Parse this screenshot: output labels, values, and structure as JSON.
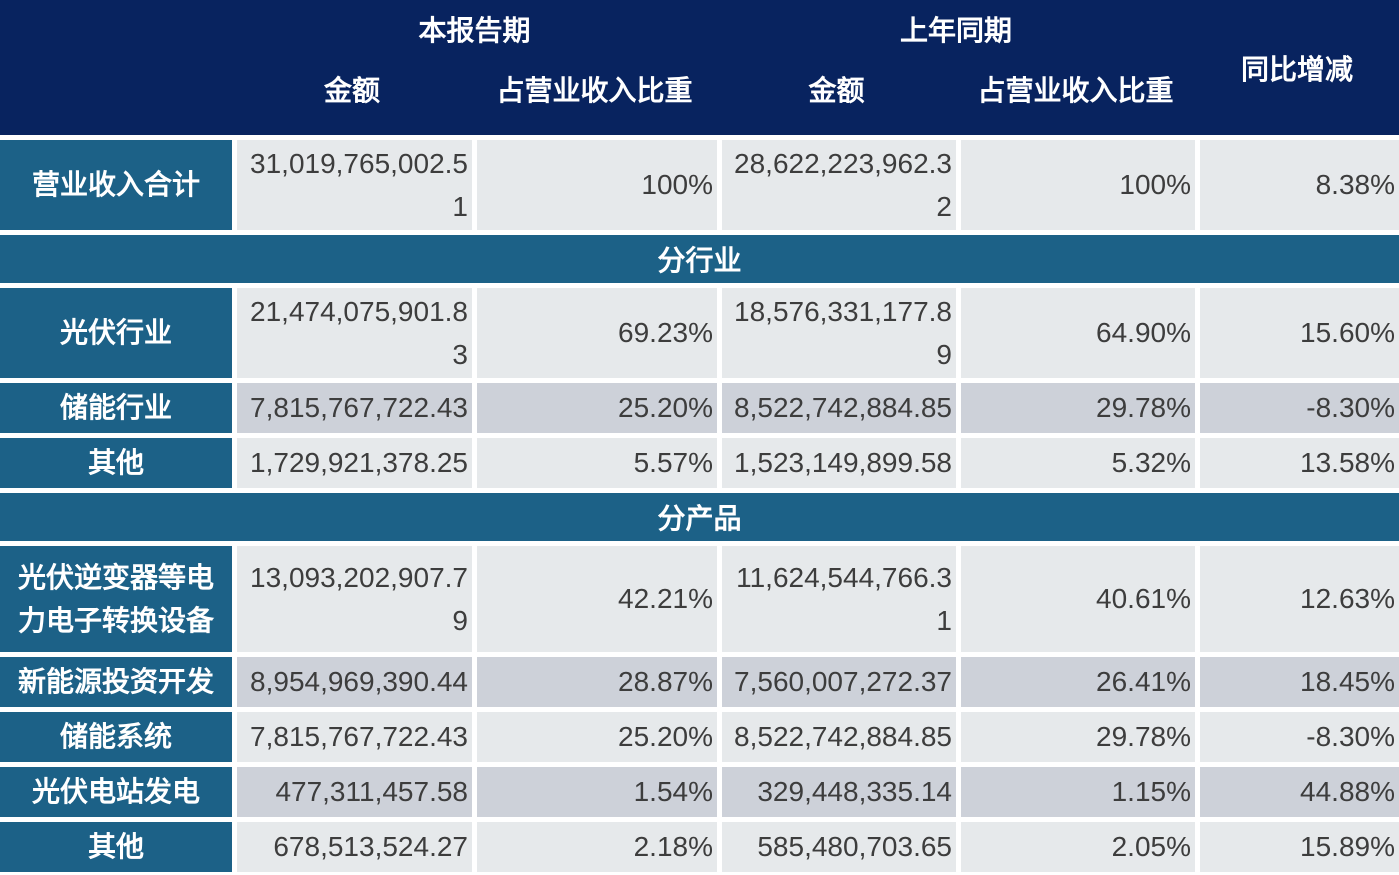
{
  "chart_data": {
    "type": "table",
    "header": {
      "current_period": "本报告期",
      "prior_period": "上年同期",
      "yoy": "同比增减",
      "amount": "金额",
      "share": "占营业收入比重"
    },
    "columns": [
      "",
      "本报告期 金额",
      "本报告期 占营业收入比重",
      "上年同期 金额",
      "上年同期 占营业收入比重",
      "同比增减"
    ],
    "rows": [
      {
        "type": "data",
        "label": "营业收入合计",
        "amount_current": "31,019,765,002.51",
        "share_current": "100%",
        "amount_prior": "28,622,223,962.32",
        "share_prior": "100%",
        "yoy": "8.38%",
        "shade": "light",
        "size": "tall"
      },
      {
        "type": "section",
        "label": "分行业"
      },
      {
        "type": "data",
        "label": "光伏行业",
        "amount_current": "21,474,075,901.83",
        "share_current": "69.23%",
        "amount_prior": "18,576,331,177.89",
        "share_prior": "64.90%",
        "yoy": "15.60%",
        "shade": "light",
        "size": "tall"
      },
      {
        "type": "data",
        "label": "储能行业",
        "amount_current": "7,815,767,722.43",
        "share_current": "25.20%",
        "amount_prior": "8,522,742,884.85",
        "share_prior": "29.78%",
        "yoy": "-8.30%",
        "shade": "dark",
        "size": "std"
      },
      {
        "type": "data",
        "label": "其他",
        "amount_current": "1,729,921,378.25",
        "share_current": "5.57%",
        "amount_prior": "1,523,149,899.58",
        "share_prior": "5.32%",
        "yoy": "13.58%",
        "shade": "light",
        "size": "std"
      },
      {
        "type": "section",
        "label": "分产品"
      },
      {
        "type": "data",
        "label": "光伏逆变器等电力电子转换设备",
        "amount_current": "13,093,202,907.79",
        "share_current": "42.21%",
        "amount_prior": "11,624,544,766.31",
        "share_prior": "40.61%",
        "yoy": "12.63%",
        "shade": "light",
        "size": "xl"
      },
      {
        "type": "data",
        "label": "新能源投资开发",
        "amount_current": "8,954,969,390.44",
        "share_current": "28.87%",
        "amount_prior": "7,560,007,272.37",
        "share_prior": "26.41%",
        "yoy": "18.45%",
        "shade": "dark",
        "size": "std"
      },
      {
        "type": "data",
        "label": "储能系统",
        "amount_current": "7,815,767,722.43",
        "share_current": "25.20%",
        "amount_prior": "8,522,742,884.85",
        "share_prior": "29.78%",
        "yoy": "-8.30%",
        "shade": "light",
        "size": "std"
      },
      {
        "type": "data",
        "label": "光伏电站发电",
        "amount_current": "477,311,457.58",
        "share_current": "1.54%",
        "amount_prior": "329,448,335.14",
        "share_prior": "1.15%",
        "yoy": "44.88%",
        "shade": "dark",
        "size": "std"
      },
      {
        "type": "data",
        "label": "其他",
        "amount_current": "678,513,524.27",
        "share_current": "2.18%",
        "amount_prior": "585,480,703.65",
        "share_prior": "2.05%",
        "yoy": "15.89%",
        "shade": "light",
        "size": "std"
      }
    ]
  },
  "colors": {
    "header_bg": "#08235f",
    "label_bg": "#1c6187",
    "section_bg": "#1c6187",
    "row_light": "#e6e9eb",
    "row_dark": "#cdd1d9",
    "gap": "#ffffff",
    "text_dark": "#3d3d3d",
    "text_light": "#ffffff"
  }
}
